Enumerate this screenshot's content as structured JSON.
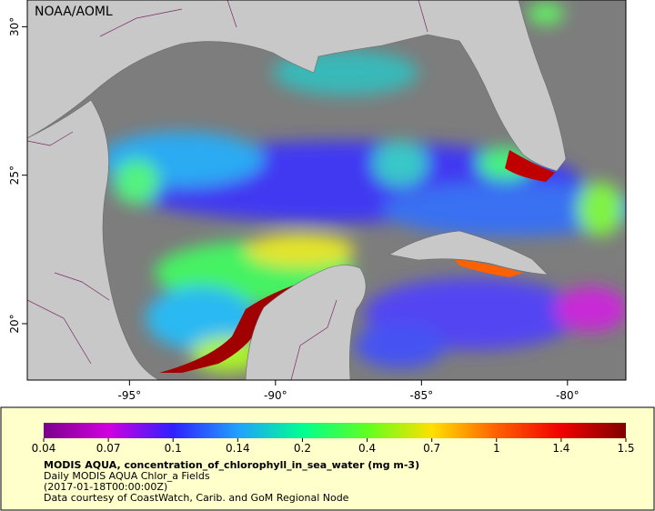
{
  "map": {
    "watermark": "NOAA/AOML",
    "lon_range": [
      -98.5,
      -78
    ],
    "lat_range": [
      18.1,
      30.9
    ],
    "lon_ticks": [
      {
        "value": -95,
        "label": "-95°"
      },
      {
        "value": -90,
        "label": "-90°"
      },
      {
        "value": -85,
        "label": "-85°"
      },
      {
        "value": -80,
        "label": "-80°"
      }
    ],
    "lat_ticks": [
      {
        "value": 30,
        "label": "30°"
      },
      {
        "value": 25,
        "label": "25°"
      },
      {
        "value": 20,
        "label": "20°"
      }
    ],
    "colorbar": {
      "ticks": [
        0.04,
        0.07,
        0.1,
        0.14,
        0.2,
        0.4,
        0.7,
        1,
        1.4,
        1.5
      ],
      "colors": [
        "#7a008a",
        "#d000e0",
        "#3020ff",
        "#20a0ff",
        "#00ff90",
        "#60ff20",
        "#ffe000",
        "#ff6000",
        "#f00000",
        "#800000"
      ]
    },
    "caption": {
      "title": "MODIS AQUA, concentration_of_chlorophyll_in_sea_water (mg m-3)",
      "lines": [
        "Daily MODIS AQUA Chlor_a Fields",
        "(2017-01-18T00:00:00Z)",
        "Data courtesy of CoastWatch, Carib. and GoM Regional Node"
      ]
    }
  }
}
